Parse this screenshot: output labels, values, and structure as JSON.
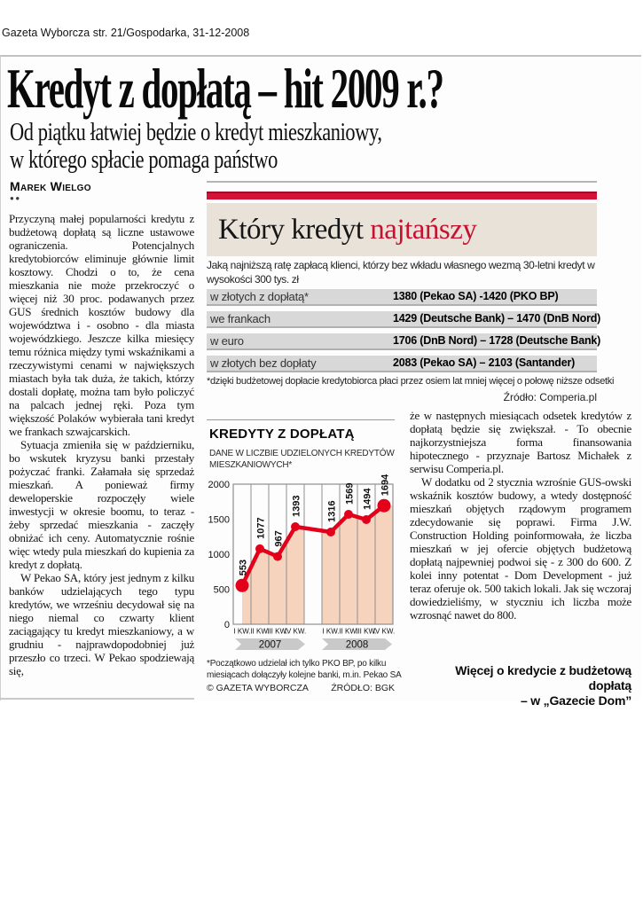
{
  "page": {
    "meta": "Gazeta Wyborcza str. 21/Gospodarka, 31-12-2008"
  },
  "article": {
    "headline": "Kredyt z dopłatą – hit 2009 r.?",
    "subtitle_line1": "Od piątku łatwiej będzie o kredyt mieszkaniowy,",
    "subtitle_line2": "w którego spłacie pomaga państwo",
    "byline": "Marek Wielgo",
    "byline_marks": "●●",
    "left_column": {
      "p1": "Przyczyną małej popularności kredytu z budżetową dopłatą są liczne ustawowe ograniczenia. Potencjalnych kredytobiorców eliminuje głównie limit kosztowy. Chodzi o to, że cena mieszkania nie może przekroczyć o więcej niż 30 proc. podawanych przez GUS średnich kosztów budowy dla województwa i - osobno - dla miasta wojewódzkiego. Jeszcze kilka miesięcy temu różnica między tymi wskaźnikami a rzeczywistymi cenami w największych miastach była tak duża, że takich, którzy dostali dopłatę, można tam było policzyć na palcach jednej ręki. Poza tym większość Polaków wybierała tani kredyt we frankach szwajcarskich.",
      "p2": "Sytuacja zmieniła się w październiku, bo wskutek kryzysu banki przestały pożyczać franki. Załamała się sprzedaż mieszkań. A ponieważ firmy deweloperskie rozpoczęły wiele inwestycji w okresie boomu, to teraz - żeby sprzedać mieszkania - zaczęły obniżać ich ceny. Automatycznie rośnie więc wtedy pula mieszkań do kupienia za kredyt z dopłatą.",
      "p3": "W Pekao SA, który jest jednym z kilku banków udzielających tego typu kredytów, we wrześniu decydował się na niego niemal co czwarty klient zaciągający tu kredyt mieszkaniowy, a w grudniu - najprawdopodobniej już przeszło co trzeci. W Pekao spodziewają się,"
    },
    "right_column": {
      "p1": "że w następnych miesiącach odsetek kredytów z dopłatą będzie się zwiększał. - To obecnie najkorzystniejsza forma finansowania hipotecznego - przyznaje Bartosz Michałek z serwisu Comperia.pl.",
      "p2": "W dodatku od 2 stycznia wzrośnie GUS-owski wskaźnik kosztów budowy, a wtedy dostępność mieszkań objętych rządowym programem zdecydowanie się poprawi. Firma J.W. Construction Holding poinformowała, że liczba mieszkań w jej ofercie objętych budżetową dopłatą najpewniej podwoi się - z 300 do 600. Z kolei inny potentat - Dom Development - już teraz oferuje ok. 500 takich lokali. Jak się wczoraj dowiedzieliśmy, w styczniu ich liczba może wzrosnąć nawet do 800.",
      "closing_line1": "Więcej o kredycie z budżetową dopłatą",
      "closing_line2": "– w „Gazecie Dom”"
    }
  },
  "infobox": {
    "title_black": "Który kredyt ",
    "title_red": "najtańszy",
    "intro": "Jaką najniższą ratę zapłacą klienci, którzy bez wkładu własnego wezmą 30-letni kredyt w wysokości 300 tys. zł",
    "rows": [
      {
        "label": "w złotych z dopłatą*",
        "value": "1380 (Pekao SA) -1420 (PKO BP)"
      },
      {
        "label": "we frankach",
        "value": "1429 (Deutsche Bank) – 1470 (DnB Nord)"
      },
      {
        "label": "w euro",
        "value": "1706 (DnB Nord) – 1728 (Deutsche Bank)"
      },
      {
        "label": "w złotych bez dopłaty",
        "value": "2083 (Pekao SA) – 2103 (Santander)"
      }
    ],
    "footnote": "*dzięki budżetowej dopłacie kredytobiorca płaci przez osiem lat mniej więcej o połowę niższe odsetki",
    "source": "Źródło: Comperia.pl"
  },
  "chart_data": {
    "type": "line",
    "title": "KREDYTY Z DOPŁATĄ",
    "subtitle": "DANE W LICZBIE UDZIELONYCH KREDYTÓW MIESZKANIOWYCH*",
    "categories": [
      "I KW.",
      "II KW.",
      "III KW.",
      "IV KW.",
      "I KW.",
      "II KW.",
      "III KW.",
      "IV KW."
    ],
    "year_groups": [
      "2007",
      "2008"
    ],
    "values": [
      553,
      1077,
      967,
      1393,
      1316,
      1569,
      1494,
      1694
    ],
    "ylim": [
      0,
      2000
    ],
    "yticks": [
      0,
      500,
      1000,
      1500,
      2000
    ],
    "grid": "vertical",
    "legend": "none",
    "footnote": "*Początkowo udzielał ich tylko PKO BP, po kilku miesiącach dołączyły kolejne banki, m.in. Pekao SA",
    "credit": "© GAZETA WYBORCZA",
    "source": "ŹRÓDŁO: BGK",
    "line_color": "#e2001a",
    "fill_color": "#f6d3bd",
    "grid_color": "#8f8f8f",
    "ribbon_color": "#c9c9c9"
  },
  "colors": {
    "accent_red": "#d31338",
    "accent_dark_red": "#9d0e2a",
    "header_beige": "#e9e2d8",
    "row_gray": "#d8d8d8"
  }
}
